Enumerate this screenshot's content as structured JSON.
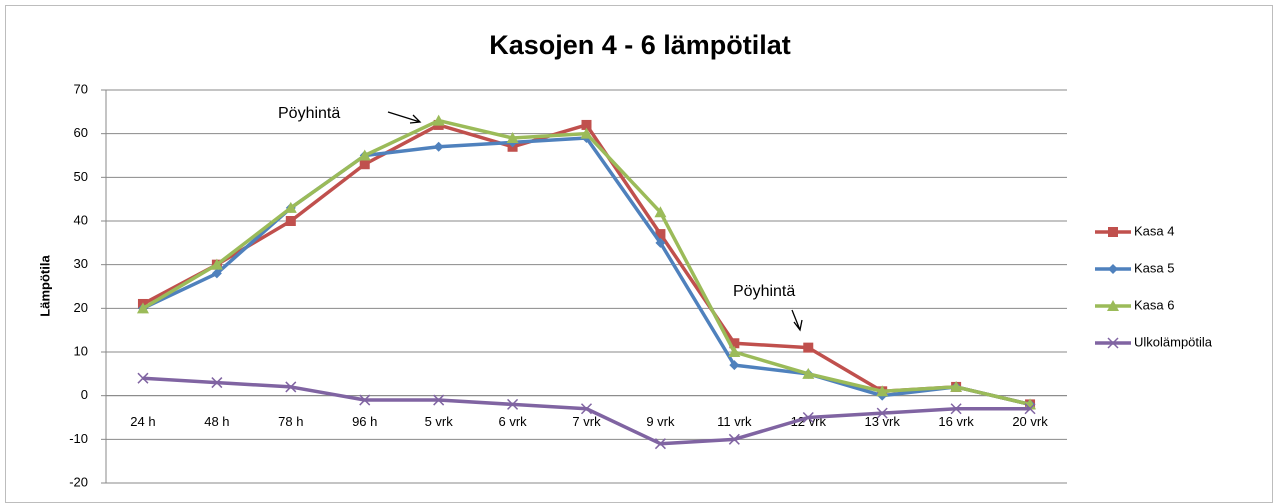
{
  "chart_data": {
    "type": "line",
    "title": "Kasojen 4 - 6 lämpötilat",
    "y_label": "Lämpötila",
    "categories": [
      "24 h",
      "48 h",
      "78 h",
      "96 h",
      "5 vrk",
      "6 vrk",
      "7 vrk",
      "9 vrk",
      "11 vrk",
      "12 vrk",
      "13 vrk",
      "16 vrk",
      "20 vrk"
    ],
    "series": [
      {
        "name": "Kasa 4",
        "color": "#c0504d",
        "marker": "square",
        "values": [
          21,
          30,
          40,
          53,
          62,
          57,
          62,
          37,
          12,
          11,
          1,
          2,
          -2
        ]
      },
      {
        "name": "Kasa 5",
        "color": "#4f81bd",
        "marker": "diamond",
        "values": [
          20,
          28,
          43,
          55,
          57,
          58,
          59,
          35,
          7,
          5,
          0,
          2,
          -2
        ]
      },
      {
        "name": "Kasa 6",
        "color": "#9bbb59",
        "marker": "triangle",
        "values": [
          20,
          30,
          43,
          55,
          63,
          59,
          60,
          42,
          10,
          5,
          1,
          2,
          -2
        ]
      },
      {
        "name": "Ulkolämpötila",
        "color": "#8064a2",
        "marker": "x",
        "values": [
          4,
          3,
          2,
          -1,
          -1,
          -2,
          -3,
          -11,
          -10,
          -5,
          -4,
          -3,
          -3
        ]
      }
    ],
    "annotations": [
      "Pöyhintä",
      "Pöyhintä"
    ],
    "ylim": [
      -20,
      70
    ],
    "yticks": [
      -20,
      -10,
      0,
      10,
      20,
      30,
      40,
      50,
      60,
      70
    ],
    "grid": true,
    "legend": "right"
  }
}
